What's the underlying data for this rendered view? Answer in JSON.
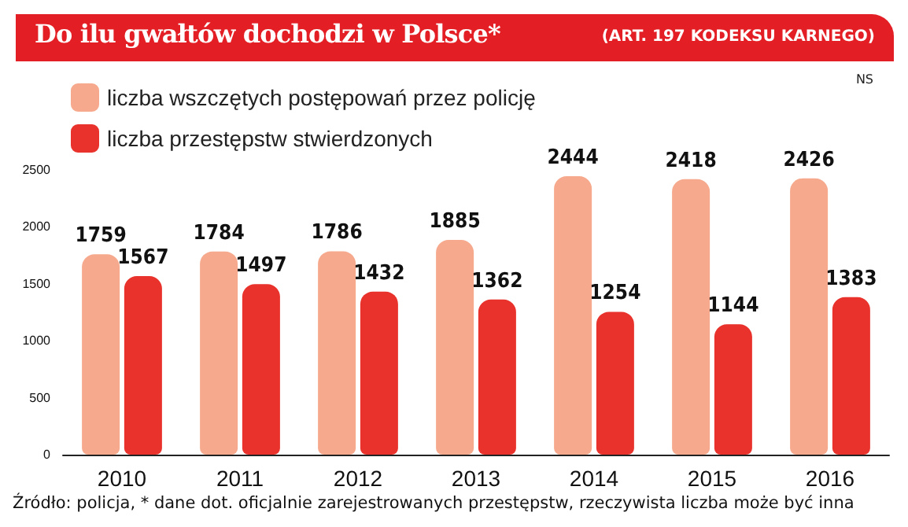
{
  "chart_data": {
    "type": "bar",
    "title": "Do ilu gwałtów dochodzi w Polsce*",
    "subtitle": "(ART. 197 KODEKSU KARNEGO)",
    "categories": [
      "2010",
      "2011",
      "2012",
      "2013",
      "2014",
      "2015",
      "2016"
    ],
    "series": [
      {
        "name": "liczba wszczętych postępowań przez policję",
        "color": "#f6a98c",
        "values": [
          1759,
          1784,
          1786,
          1885,
          2444,
          2418,
          2426
        ]
      },
      {
        "name": "liczba przestępstw stwierdzonych",
        "color": "#e8322b",
        "values": [
          1567,
          1497,
          1432,
          1362,
          1254,
          1144,
          1383
        ]
      }
    ],
    "ylim": [
      0,
      2500
    ],
    "yticks": [
      0,
      500,
      1000,
      1500,
      2000,
      2500
    ],
    "data_labels": true,
    "legend": "top left",
    "annotations": [
      "NS",
      "Źródło: policja,  * dane dot. oficjalnie zarejestrowanych przestępstw, rzeczywista liczba może być inna"
    ]
  }
}
